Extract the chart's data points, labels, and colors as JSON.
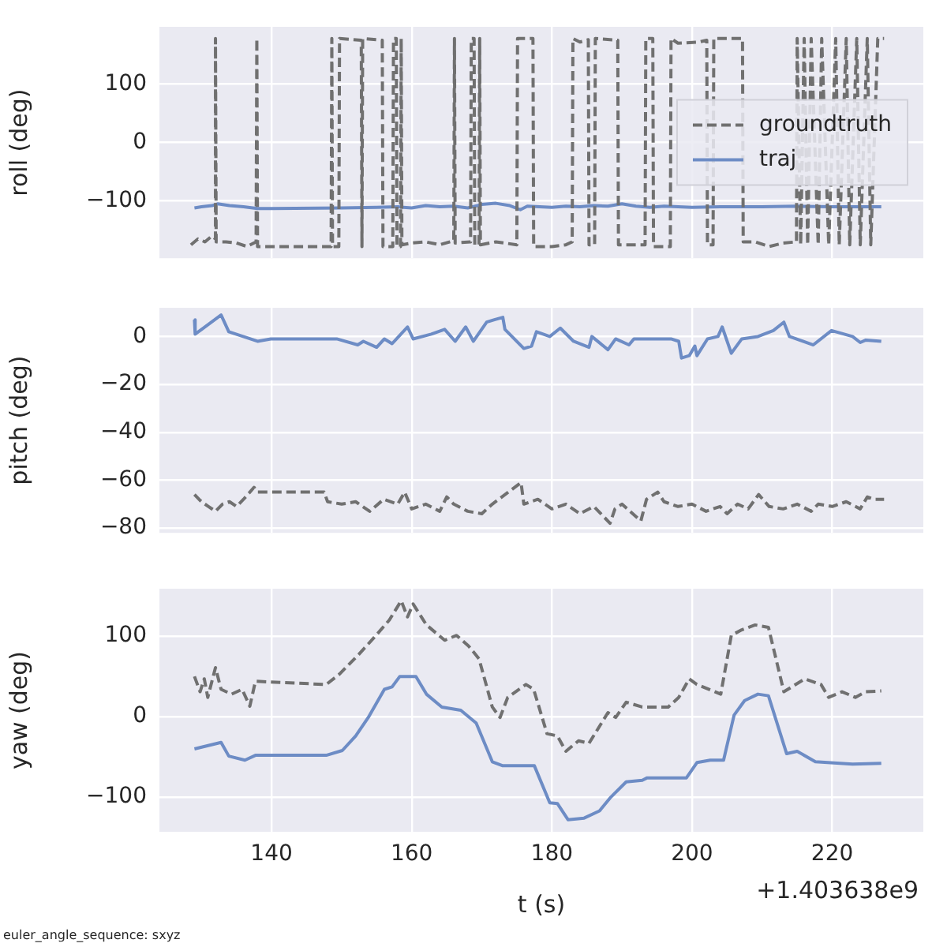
{
  "chart_data": [
    {
      "type": "line",
      "ylabel": "roll (deg)",
      "xlim": [
        124,
        233
      ],
      "xticks": [
        140,
        160,
        180,
        200,
        220
      ],
      "ylim": [
        -198,
        198
      ],
      "yticks": [
        -100,
        0,
        100
      ],
      "grid": true,
      "legend": "right",
      "tick_labels": "y",
      "series": [
        {
          "name": "groundtruth",
          "color": "#707070",
          "line_style": "dashed",
          "x": [
            128.5,
            129.5,
            130.5,
            131.5,
            132.0,
            132.0,
            132.1,
            133.5,
            135,
            136.5,
            137.8,
            137.9,
            138.0,
            143,
            148.5,
            148.6,
            148.7,
            149.6,
            149.7,
            152.8,
            152.9,
            153.0,
            155.8,
            155.9,
            157.3,
            157.4,
            157.8,
            157.9,
            158.4,
            158.5,
            158.6,
            160,
            162,
            164,
            166.0,
            166.1,
            166.2,
            168.4,
            168.5,
            168.9,
            169.0,
            169.6,
            169.7,
            169.8,
            172,
            175.0,
            175.1,
            177.3,
            177.4,
            180,
            182,
            182.9,
            183.0,
            184,
            185.2,
            185.3,
            186.1,
            186.2,
            189.4,
            189.5,
            193.3,
            193.4,
            194.4,
            194.5,
            196.9,
            197.0,
            198,
            201,
            202.1,
            202.2,
            203.0,
            203.1,
            207.2,
            207.3,
            209,
            211,
            213,
            214.9,
            215,
            215.5,
            216,
            216.5,
            217,
            218,
            218.5,
            219.5,
            220.5,
            221,
            222,
            222.5,
            223.5,
            224,
            225,
            225.5,
            226.5,
            227.4
          ],
          "values": [
            -175,
            -165,
            -170,
            -160,
            -165,
            178,
            -170,
            -170,
            -172,
            -178,
            -170,
            178,
            -178,
            -178,
            -178,
            178,
            -178,
            -178,
            178,
            175,
            -178,
            178,
            175,
            -178,
            -178,
            178,
            178,
            -178,
            -178,
            178,
            -175,
            -172,
            -170,
            -175,
            -168,
            178,
            -172,
            -170,
            178,
            178,
            -175,
            -175,
            178,
            -175,
            -170,
            -175,
            178,
            178,
            -178,
            -178,
            -175,
            -170,
            178,
            172,
            176,
            -175,
            -175,
            178,
            175,
            -175,
            -175,
            178,
            178,
            -178,
            -178,
            178,
            170,
            172,
            175,
            -175,
            -175,
            178,
            178,
            -170,
            -170,
            -178,
            -172,
            -170,
            178,
            -175,
            178,
            -175,
            178,
            -175,
            178,
            -175,
            178,
            -175,
            178,
            -175,
            178,
            -175,
            178,
            -175,
            178,
            178
          ]
        },
        {
          "name": "traj",
          "color": "#6d8cc5",
          "line_style": "solid",
          "x": [
            129,
            130,
            131.5,
            132.3,
            134,
            136,
            138,
            140,
            150,
            155,
            158,
            160,
            162,
            164,
            166,
            168,
            170,
            172,
            174,
            175.5,
            176.5,
            180,
            182,
            184,
            186,
            188,
            190,
            192,
            194,
            196,
            198,
            200,
            204,
            210,
            215,
            220,
            227
          ],
          "values": [
            -112,
            -110,
            -108,
            -105,
            -108,
            -110,
            -113,
            -113,
            -112,
            -111,
            -110,
            -112,
            -108,
            -110,
            -109,
            -112,
            -106,
            -104,
            -108,
            -115,
            -109,
            -111,
            -109,
            -110,
            -108,
            -109,
            -105,
            -109,
            -111,
            -109,
            -110,
            -111,
            -110,
            -110,
            -109,
            -110,
            -110
          ]
        }
      ]
    },
    {
      "type": "line",
      "ylabel": "pitch (deg)",
      "xlim": [
        124,
        233
      ],
      "xticks": [
        140,
        160,
        180,
        200,
        220
      ],
      "ylim": [
        -82,
        12
      ],
      "yticks": [
        -80,
        -60,
        -40,
        -20,
        0
      ],
      "grid": true,
      "tick_labels": "y",
      "series": [
        {
          "color": "#707070",
          "line_style": "dashed",
          "x": [
            129,
            130,
            131,
            132,
            133,
            134,
            135,
            136,
            137.5,
            138,
            147.5,
            148,
            150,
            152,
            154,
            156,
            158,
            159,
            160,
            162,
            164,
            165,
            166,
            168,
            170,
            171.5,
            175.6,
            176,
            178,
            180,
            182,
            184,
            186,
            188.3,
            189,
            190,
            192.7,
            193.5,
            195.1,
            196,
            198,
            200,
            202,
            204,
            205,
            206.5,
            208,
            209.5,
            211,
            213,
            215,
            217,
            218,
            220,
            222,
            224,
            225,
            226,
            227.4
          ],
          "values": [
            -66,
            -69,
            -71,
            -73,
            -70,
            -69,
            -71,
            -68,
            -63,
            -65,
            -65,
            -69,
            -70,
            -69,
            -73,
            -68,
            -70,
            -65,
            -72,
            -70,
            -73,
            -67,
            -70,
            -73,
            -74,
            -70,
            -61,
            -70,
            -68,
            -72,
            -70,
            -74,
            -71,
            -78,
            -72,
            -70,
            -77,
            -68,
            -65,
            -69,
            -71,
            -70,
            -73,
            -71,
            -74,
            -70,
            -72,
            -66,
            -71,
            -72,
            -70,
            -73,
            -70,
            -71,
            -69,
            -72,
            -67,
            -68,
            -68
          ]
        },
        {
          "color": "#6d8cc5",
          "line_style": "solid",
          "x": [
            129.0,
            129.1,
            132.8,
            133.9,
            138.0,
            139.9,
            149.3,
            152.3,
            153.1,
            155.0,
            156.1,
            157.2,
            159.4,
            160.2,
            162.8,
            164.7,
            166.2,
            167.7,
            168.8,
            170.7,
            171.8,
            173.0,
            173.3,
            176.0,
            177.1,
            177.8,
            179.7,
            181.2,
            183.1,
            185.3,
            185.7,
            188.0,
            189.1,
            191.0,
            191.7,
            197.0,
            198.1,
            198.5,
            199.6,
            200.4,
            200.7,
            202.2,
            203.7,
            204.3,
            205.6,
            207.1,
            209.4,
            211.6,
            213.1,
            213.9,
            217.3,
            219.9,
            222.9,
            224.0,
            224.8,
            227.0
          ],
          "values": [
            7,
            1,
            9,
            2,
            -2,
            -1,
            -1,
            -3.5,
            -2,
            -4.5,
            -1,
            -3,
            4,
            -1,
            1,
            3,
            -2,
            4,
            -2,
            6,
            7,
            8,
            3,
            -5,
            -4,
            2,
            0,
            3.5,
            -2,
            -4.5,
            0,
            -5.5,
            -1,
            -3.5,
            -1,
            -1,
            -2,
            -9,
            -8,
            -4,
            -8,
            -1,
            0,
            4,
            -7,
            -1,
            0,
            2.5,
            6,
            0,
            -3.5,
            2.5,
            0,
            -2.5,
            -1.5,
            -2
          ]
        }
      ]
    },
    {
      "type": "line",
      "ylabel": "yaw (deg)",
      "xlabel": "t (s)",
      "xlim": [
        124,
        233
      ],
      "xticks": [
        140,
        160,
        180,
        200,
        220
      ],
      "ylim": [
        -143,
        159
      ],
      "yticks": [
        -100,
        0,
        100
      ],
      "grid": true,
      "annotations": [
        "+1.403638e9",
        "euler_angle_sequence: sxyz"
      ],
      "series": [
        {
          "color": "#707070",
          "line_style": "dashed",
          "x": [
            129.0,
            129.8,
            130.4,
            130.9,
            132.0,
            132.8,
            134.3,
            135.8,
            136.9,
            137.7,
            147.8,
            149.7,
            152.3,
            154.6,
            156.8,
            158.5,
            159.4,
            160.2,
            162.1,
            164.7,
            166.4,
            168.1,
            169.6,
            171.5,
            172.6,
            173.7,
            176.3,
            177.4,
            179.3,
            180.8,
            182.0,
            183.8,
            185.3,
            188.0,
            189.1,
            190.6,
            192.9,
            196.6,
            198.1,
            199.6,
            200.7,
            204.1,
            205.6,
            207.1,
            209.0,
            210.9,
            213.1,
            216.1,
            218.4,
            219.5,
            221.4,
            223.3,
            224.8,
            227.0
          ],
          "values": [
            50,
            31,
            47,
            24,
            61,
            34,
            28,
            34,
            13,
            44,
            40,
            53,
            76,
            98,
            120,
            144,
            124,
            140,
            114,
            95,
            101,
            88,
            72,
            12,
            -1,
            24,
            40,
            34,
            -21,
            -24,
            -43,
            -30,
            -33,
            5,
            -1,
            18,
            12,
            12,
            24,
            47,
            40,
            28,
            101,
            108,
            114,
            111,
            31,
            47,
            40,
            24,
            31,
            24,
            31,
            32
          ]
        },
        {
          "color": "#6d8cc5",
          "line_style": "solid",
          "x": [
            129.0,
            132.8,
            133.9,
            136.2,
            137.7,
            147.8,
            150.1,
            152.0,
            153.8,
            156.1,
            157.2,
            158.3,
            160.6,
            162.1,
            164.3,
            167.0,
            169.2,
            171.5,
            173.0,
            177.5,
            179.7,
            180.8,
            182.3,
            184.6,
            186.8,
            188.3,
            190.6,
            192.9,
            193.6,
            199.2,
            200.7,
            202.6,
            204.5,
            206.0,
            207.5,
            209.4,
            210.9,
            213.5,
            215.0,
            217.6,
            222.9,
            227.0
          ],
          "values": [
            -40,
            -32,
            -49,
            -54,
            -48,
            -48,
            -42,
            -24,
            -1,
            34,
            37,
            50,
            50,
            28,
            12,
            8,
            -8,
            -56,
            -61,
            -61,
            -107,
            -108,
            -128,
            -126,
            -117,
            -101,
            -81,
            -79,
            -76,
            -76,
            -57,
            -54,
            -54,
            2,
            20,
            28,
            26,
            -46,
            -43,
            -56,
            -59,
            -58
          ]
        }
      ]
    }
  ]
}
